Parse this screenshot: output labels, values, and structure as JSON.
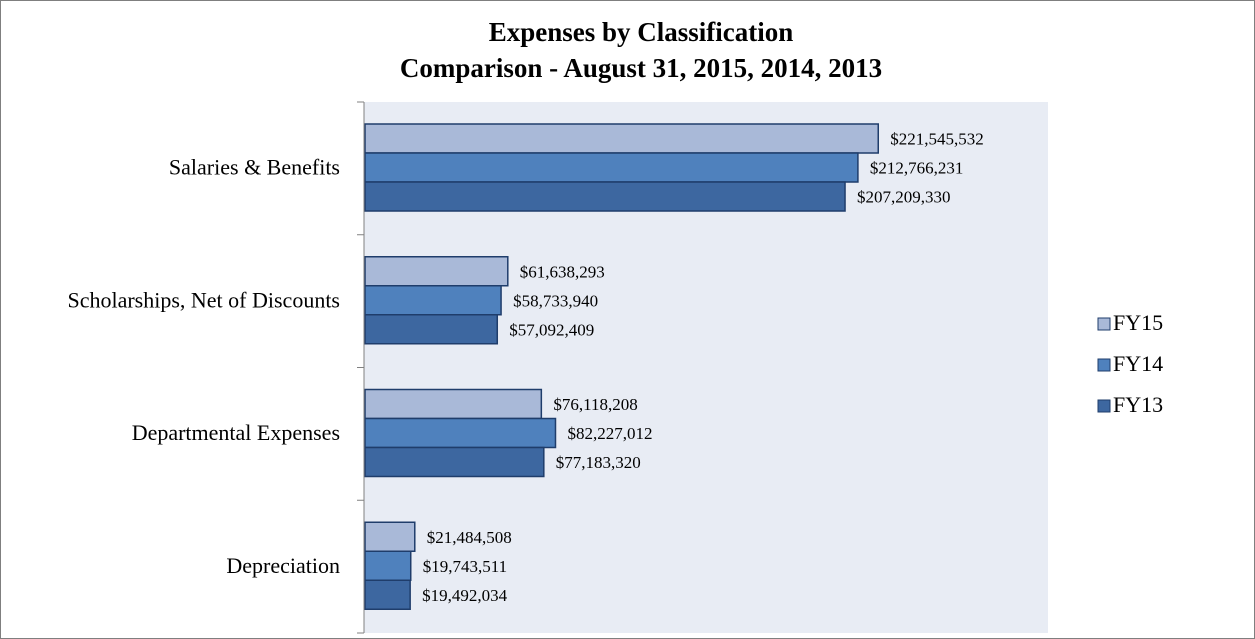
{
  "chart_data": {
    "type": "bar",
    "orientation": "horizontal",
    "title": "Expenses by Classification",
    "subtitle": "Comparison - August 31, 2015, 2014, 2013",
    "categories": [
      "Salaries & Benefits",
      "Scholarships, Net of Discounts",
      "Departmental Expenses",
      "Depreciation"
    ],
    "series": [
      {
        "name": "FY15",
        "color": "#a9b9d8",
        "values": [
          221545532,
          61638293,
          76118208,
          21484508
        ],
        "labels": [
          "$221,545,532",
          "$61,638,293",
          "$76,118,208",
          "$21,484,508"
        ]
      },
      {
        "name": "FY14",
        "color": "#4f81bd",
        "values": [
          212766231,
          58733940,
          82227012,
          19743511
        ],
        "labels": [
          "$212,766,231",
          "$58,733,940",
          "$82,227,012",
          "$19,743,511"
        ]
      },
      {
        "name": "FY13",
        "color": "#3d67a0",
        "values": [
          207209330,
          57092409,
          77183320,
          19492034
        ],
        "labels": [
          "$207,209,330",
          "$57,092,409",
          "$77,183,320",
          "$19,492,034"
        ]
      }
    ],
    "xlim": [
      0,
      300000000
    ],
    "grid": false,
    "legend_position": "right"
  }
}
